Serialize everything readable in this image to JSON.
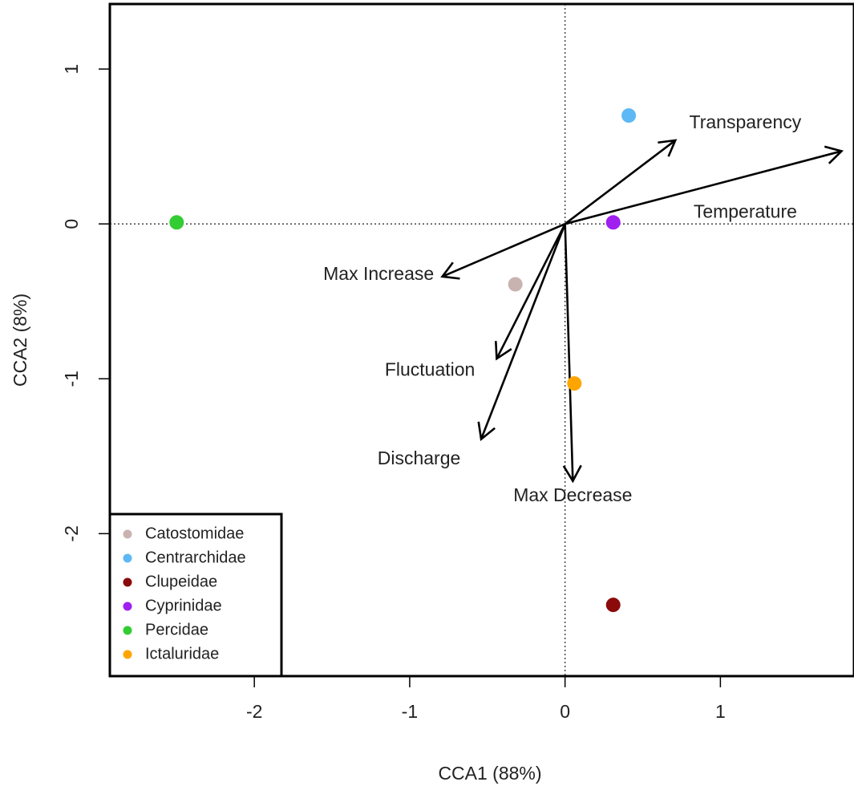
{
  "chart_data": {
    "type": "scatter",
    "xlabel": "CCA1 (88%)",
    "ylabel": "CCA2 (8%)",
    "xlim": [
      -2.93,
      1.86
    ],
    "ylim": [
      -2.92,
      1.42
    ],
    "x_ticks": [
      -2,
      -1,
      0,
      1
    ],
    "y_ticks": [
      -2,
      -1,
      0,
      1
    ],
    "reference_lines": {
      "x": 0,
      "y": 0,
      "style": "dotted"
    },
    "series": [
      {
        "name": "Catostomidae",
        "color": "#c9b3b0",
        "x": -0.32,
        "y": -0.39
      },
      {
        "name": "Centrarchidae",
        "color": "#5db8f5",
        "x": 0.41,
        "y": 0.7
      },
      {
        "name": "Clupeidae",
        "color": "#8b0a0a",
        "x": 0.31,
        "y": -2.46
      },
      {
        "name": "Cyprinidae",
        "color": "#a020f0",
        "x": 0.31,
        "y": 0.01
      },
      {
        "name": "Percidae",
        "color": "#33cc33",
        "x": -2.5,
        "y": 0.01
      },
      {
        "name": "Ictaluridae",
        "color": "#ffa500",
        "x": 0.06,
        "y": -1.03
      }
    ],
    "vectors": [
      {
        "name": "Transparency",
        "x": 0.71,
        "y": 0.54,
        "label_x": 1.16,
        "label_y": 0.65
      },
      {
        "name": "Temperature",
        "x": 1.78,
        "y": 0.47,
        "label_x": 1.16,
        "label_y": 0.07
      },
      {
        "name": "Max Increase",
        "x": -0.79,
        "y": -0.34,
        "label_x": -1.2,
        "label_y": -0.33
      },
      {
        "name": "Fluctuation",
        "x": -0.44,
        "y": -0.87,
        "label_x": -0.87,
        "label_y": -0.95
      },
      {
        "name": "Discharge",
        "x": -0.54,
        "y": -1.39,
        "label_x": -0.94,
        "label_y": -1.52
      },
      {
        "name": "Max Decrease",
        "x": 0.05,
        "y": -1.66,
        "label_x": 0.05,
        "label_y": -1.76
      }
    ],
    "legend": {
      "position": "bottom-left"
    }
  }
}
